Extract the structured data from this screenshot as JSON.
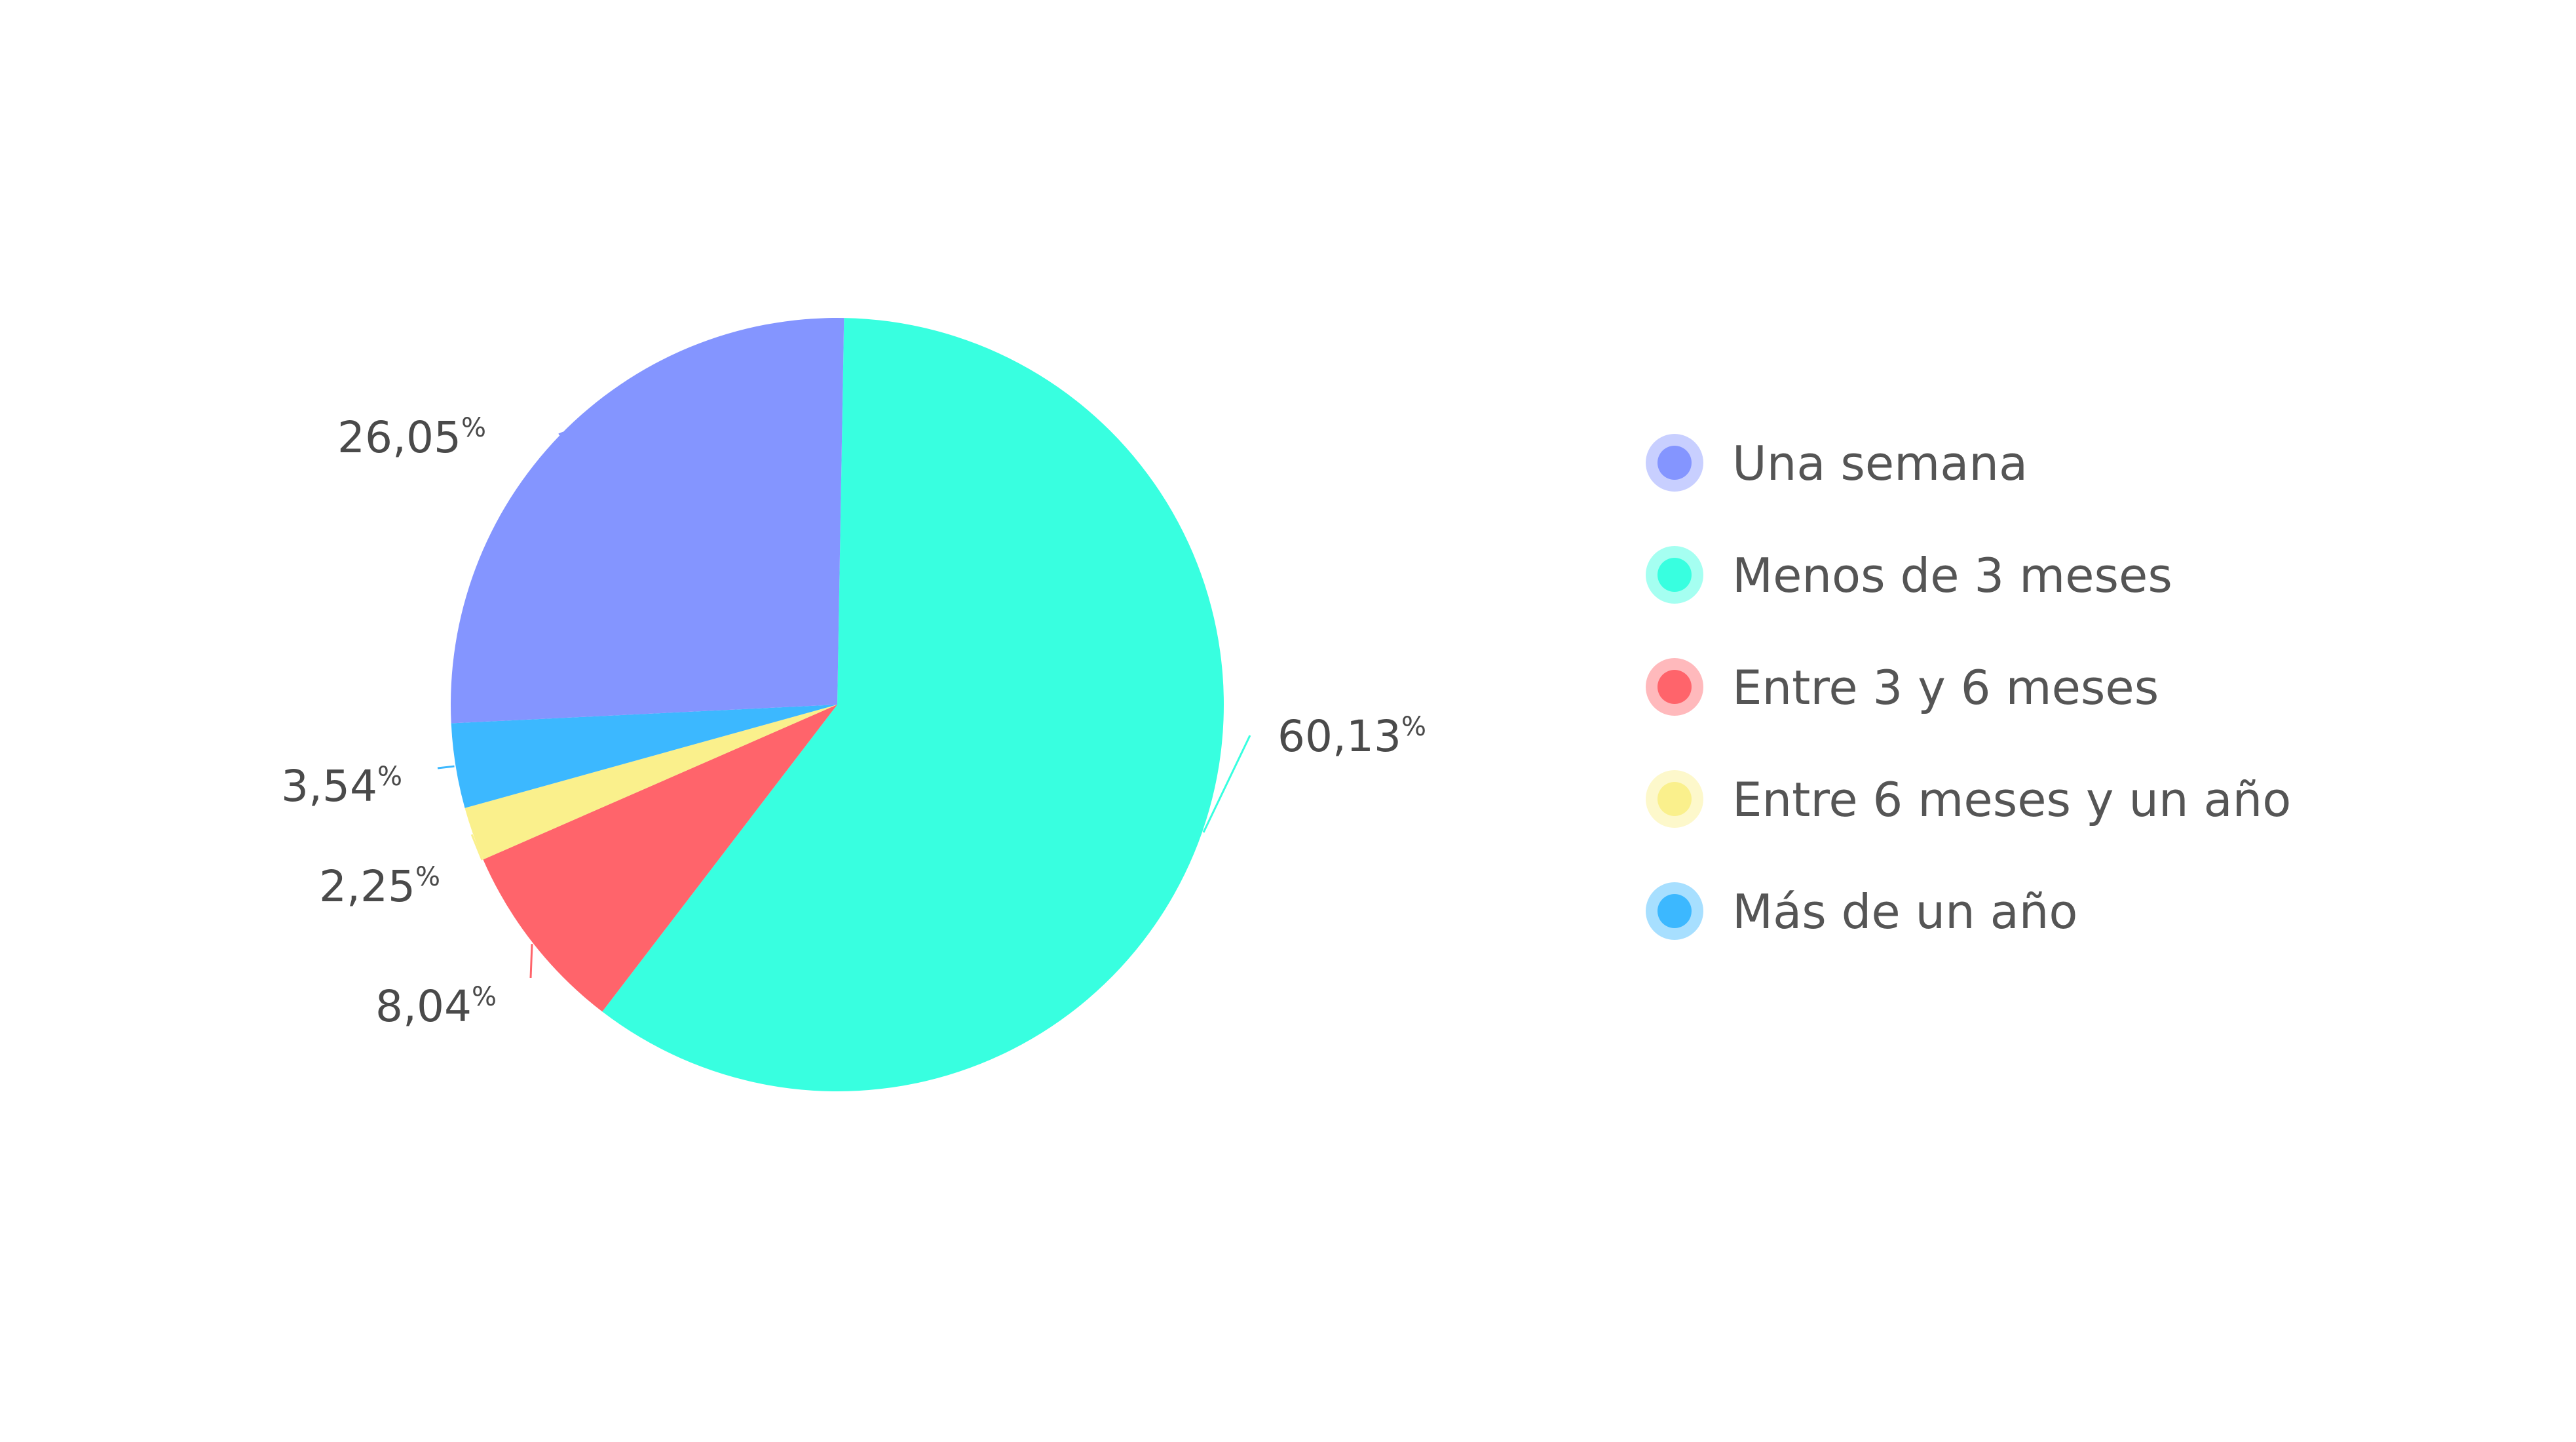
{
  "chart_data": {
    "type": "pie",
    "value_suffix": "%",
    "slices": [
      {
        "label": "Una semana",
        "value": 26.05,
        "value_text": "26,05",
        "color": "#8495FF"
      },
      {
        "label": "Menos de 3 meses",
        "value": 60.13,
        "value_text": "60,13",
        "color": "#38FFE0"
      },
      {
        "label": "Entre 3 y 6 meses",
        "value": 8.04,
        "value_text": "8,04",
        "color": "#FF646B"
      },
      {
        "label": "Entre 6 meses y un año",
        "value": 2.25,
        "value_text": "2,25",
        "color": "#FAF08C"
      },
      {
        "label": "Más de un año",
        "value": 3.54,
        "value_text": "3,54",
        "color": "#3CB8FF"
      }
    ],
    "legend_position": "right"
  }
}
